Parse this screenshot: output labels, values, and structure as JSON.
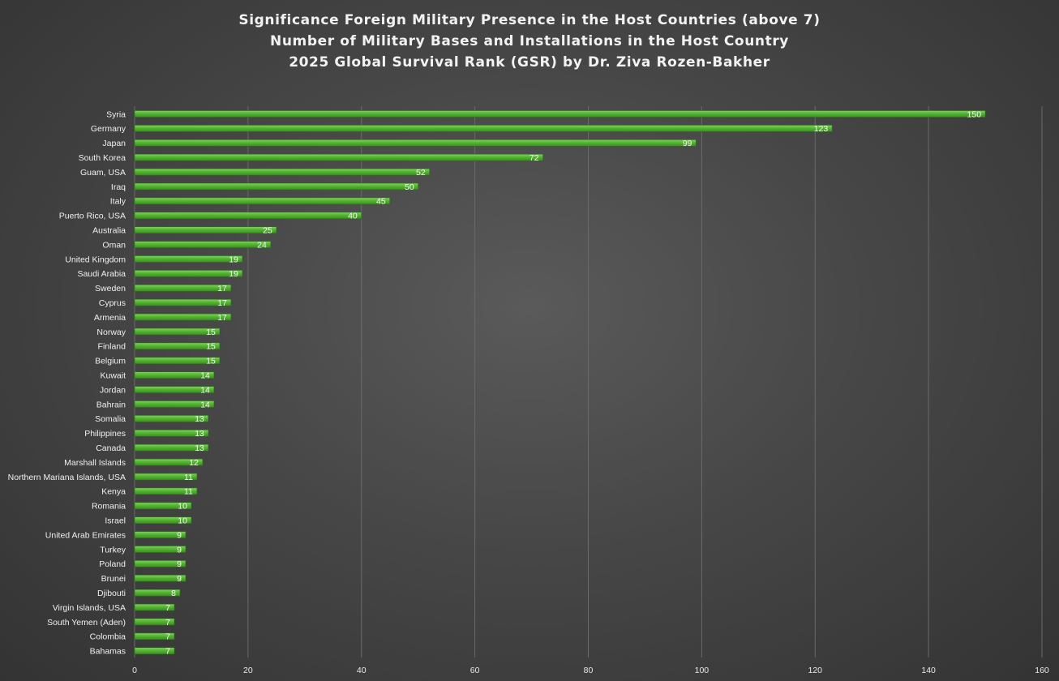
{
  "chart_data": {
    "type": "bar",
    "orientation": "horizontal",
    "title_lines": [
      "Significance Foreign Military Presence in the Host Countries (above 7)",
      "Number of Military Bases and Installations in the Host Country",
      "2025 Global Survival Rank (GSR) by Dr. Ziva Rozen-Bakher"
    ],
    "categories": [
      "Syria",
      "Germany",
      "Japan",
      "South Korea",
      "Guam, USA",
      "Iraq",
      "Italy",
      "Puerto Rico, USA",
      "Australia",
      "Oman",
      "United Kingdom",
      "Saudi Arabia",
      "Sweden",
      "Cyprus",
      "Armenia",
      "Norway",
      "Finland",
      "Belgium",
      "Kuwait",
      "Jordan",
      "Bahrain",
      "Somalia",
      "Philippines",
      "Canada",
      "Marshall Islands",
      "Northern Mariana Islands, USA",
      "Kenya",
      "Romania",
      "Israel",
      "United Arab Emirates",
      "Turkey",
      "Poland",
      "Brunei",
      "Djibouti",
      "Virgin Islands, USA",
      "South Yemen (Aden)",
      "Colombia",
      "Bahamas"
    ],
    "values": [
      150,
      123,
      99,
      72,
      52,
      50,
      45,
      40,
      25,
      24,
      19,
      19,
      17,
      17,
      17,
      15,
      15,
      15,
      14,
      14,
      14,
      13,
      13,
      13,
      12,
      11,
      11,
      10,
      10,
      9,
      9,
      9,
      9,
      8,
      7,
      7,
      7,
      7
    ],
    "xlim": [
      0,
      160
    ],
    "xticks": [
      0,
      20,
      40,
      60,
      80,
      100,
      120,
      140,
      160
    ],
    "grid": true,
    "legend": "none",
    "bar_color": "#4fae2e",
    "bar_highlight": "#7cd65a",
    "grid_color": "#6a6a6a"
  }
}
